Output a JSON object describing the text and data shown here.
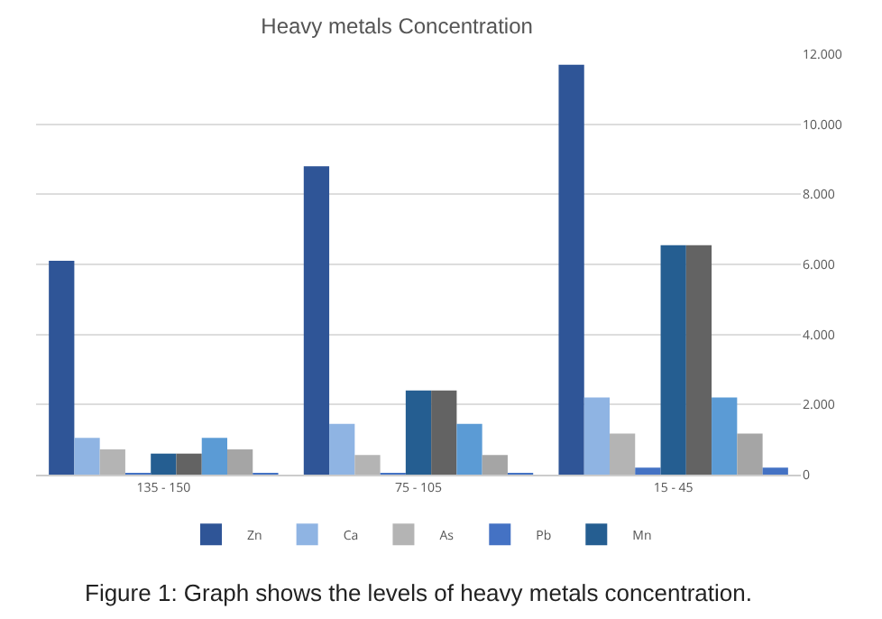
{
  "chart_data": {
    "type": "bar",
    "title": "Heavy metals Concentration",
    "categories": [
      "135 - 150",
      "75 - 105",
      "15 - 45"
    ],
    "series": [
      {
        "name": "Zn",
        "color": "#2f5597",
        "values": [
          6100,
          8800,
          11700
        ]
      },
      {
        "name": "Ca",
        "color": "#8fb4e3",
        "values": [
          1050,
          1450,
          2200
        ]
      },
      {
        "name": "As",
        "color": "#b4b4b4",
        "values": [
          720,
          560,
          1170
        ]
      },
      {
        "name": "Pb",
        "color": "#4472c4",
        "values": [
          30,
          50,
          200
        ]
      },
      {
        "name": "Mn",
        "color": "#255e91",
        "values": [
          600,
          2400,
          6550
        ]
      },
      {
        "color": "#636363",
        "values": [
          600,
          2400,
          6550
        ]
      },
      {
        "color": "#5b9bd5",
        "values": [
          1050,
          1450,
          2200
        ]
      },
      {
        "color": "#a5a5a5",
        "values": [
          720,
          560,
          1170
        ]
      },
      {
        "color": "#4472c4",
        "values": [
          30,
          50,
          200
        ]
      }
    ],
    "ylim": [
      0,
      12000
    ],
    "yticks": [
      0,
      {
        "value": 2000,
        "label": "2.000"
      },
      {
        "value": 4000,
        "label": "4.000"
      },
      {
        "value": 6000,
        "label": "6.000"
      },
      {
        "value": 8000,
        "label": "8.000"
      },
      {
        "value": 10000,
        "label": "10.000"
      },
      {
        "value": 12000,
        "label": "12.000"
      }
    ],
    "grid": true,
    "legend": "bottom",
    "annotations": [
      "Figure 1: Graph shows the levels of heavy metals concentration."
    ]
  }
}
